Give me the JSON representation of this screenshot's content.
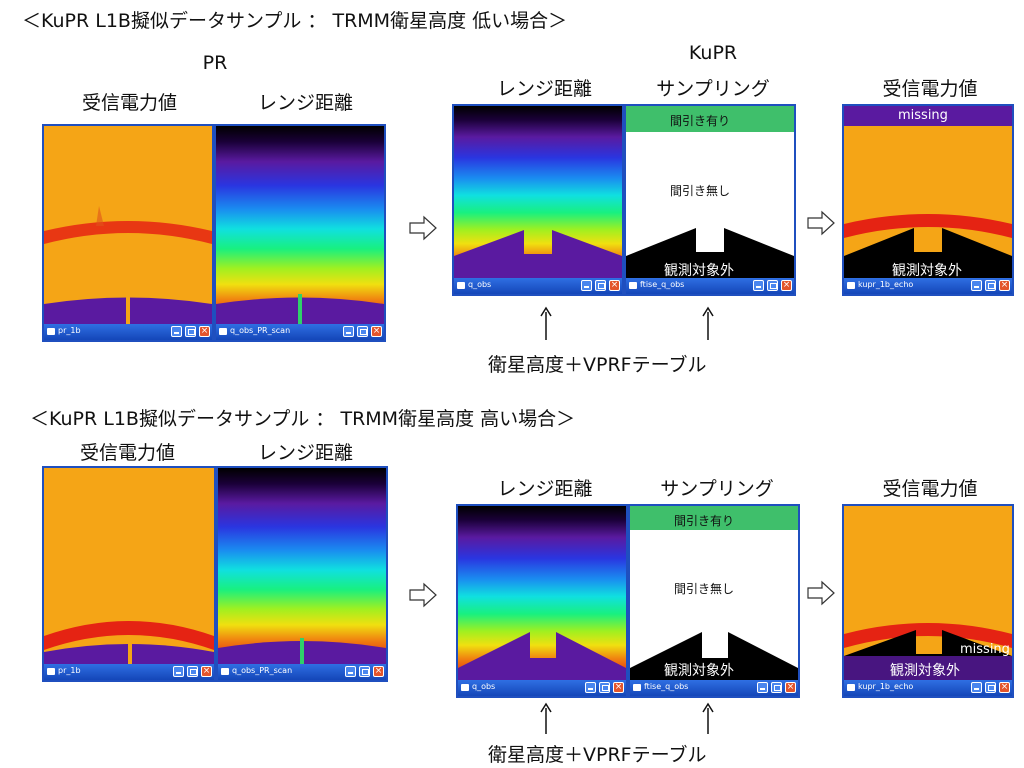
{
  "colors": {
    "orange": "#f5a516",
    "purple": "#5a1aa0",
    "red_band": "#e52313",
    "panel_frame": "#1f4fbf",
    "thinning_band": "#3fbf6b"
  },
  "section1": {
    "heading": "＜KuPR L1B擬似データサンプル ： TRMM衛星高度  低い場合＞",
    "pr_label": "PR",
    "kupr_label": "KuPR",
    "label_received": "受信電力値",
    "label_range": "レンジ距離",
    "label_range2": "レンジ距離",
    "label_sampling": "サンプリング",
    "label_received2": "受信電力値",
    "thinning_yes": "間引き有り",
    "thinning_no": "間引き無し",
    "out_of_scope": "観測対象外",
    "out_of_scope2": "観測対象外",
    "missing": "missing",
    "window_names": [
      "pr_1b",
      "q_obs_PR_scan",
      "q_obs",
      "ftise_q_obs",
      "kupr_1b_echo"
    ],
    "caption": "衛星高度＋VPRFテーブル"
  },
  "section2": {
    "heading": "＜KuPR L1B擬似データサンプル ： TRMM衛星高度  高い場合＞",
    "label_received": "受信電力値",
    "label_range": "レンジ距離",
    "label_range2": "レンジ距離",
    "label_sampling": "サンプリング",
    "label_received2": "受信電力値",
    "thinning_yes": "間引き有り",
    "thinning_no": "間引き無し",
    "out_of_scope": "観測対象外",
    "out_of_scope2": "観測対象外",
    "missing": "missing",
    "window_names": [
      "pr_1b",
      "q_obs_PR_scan",
      "q_obs",
      "ftise_q_obs",
      "kupr_1b_echo"
    ],
    "caption": "衛星高度＋VPRFテーブル"
  }
}
